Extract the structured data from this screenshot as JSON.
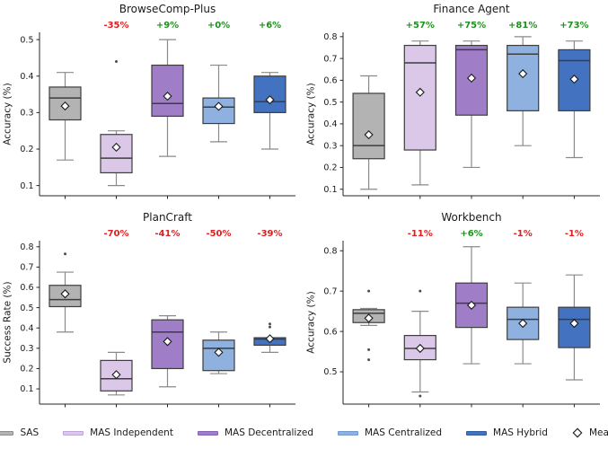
{
  "figure": {
    "type": "boxplot-grid",
    "rows": 2,
    "cols": 2
  },
  "colors": {
    "background": "#ffffff",
    "positive_change": "#1f8f1f",
    "negative_change": "#dd1f1f",
    "box_edge": "#3d3d3d",
    "median_line": "#3d3d3d",
    "whisker": "#8a8a8a",
    "outlier": "#4d4d4d",
    "mean_marker_fill": "#ffffff",
    "mean_marker_edge": "#1a1a1a",
    "axis": "#262626",
    "text": "#1a1a1a"
  },
  "legend": {
    "items": [
      {
        "label": "SAS",
        "fill": "#b3b3b3",
        "edge": "#8f8f8f"
      },
      {
        "label": "MAS Independent",
        "fill": "#dbc8e8",
        "edge": "#bda7d6"
      },
      {
        "label": "MAS Decentralized",
        "fill": "#a07dc7",
        "edge": "#8766b3"
      },
      {
        "label": "MAS Centralized",
        "fill": "#8fb1e0",
        "edge": "#7499cc"
      },
      {
        "label": "MAS Hybrid",
        "fill": "#4372c1",
        "edge": "#335e9f"
      }
    ],
    "mean_item": {
      "label": "Mean",
      "marker": "diamond"
    }
  },
  "chart_data": [
    {
      "type": "box",
      "title": "BrowseComp-Plus",
      "ylabel": "Accuracy (%)",
      "yticks": [
        0.1,
        0.2,
        0.3,
        0.4,
        0.5
      ],
      "ylim": [
        0.072,
        0.52
      ],
      "grid": false,
      "groups": [
        {
          "name": "SAS",
          "whisker_low": 0.17,
          "q1": 0.28,
          "median": 0.34,
          "q3": 0.37,
          "whisker_high": 0.41,
          "mean": 0.318,
          "outliers": [],
          "change": null
        },
        {
          "name": "MAS Independent",
          "whisker_low": 0.1,
          "q1": 0.135,
          "median": 0.175,
          "q3": 0.24,
          "whisker_high": 0.25,
          "mean": 0.205,
          "outliers": [
            0.44
          ],
          "change": "-35%"
        },
        {
          "name": "MAS Decentralized",
          "whisker_low": 0.18,
          "q1": 0.29,
          "median": 0.325,
          "q3": 0.43,
          "whisker_high": 0.5,
          "mean": 0.345,
          "outliers": [],
          "change": "+9%"
        },
        {
          "name": "MAS Centralized",
          "whisker_low": 0.22,
          "q1": 0.27,
          "median": 0.315,
          "q3": 0.34,
          "whisker_high": 0.43,
          "mean": 0.317,
          "outliers": [],
          "change": "+0%"
        },
        {
          "name": "MAS Hybrid",
          "whisker_low": 0.2,
          "q1": 0.3,
          "median": 0.33,
          "q3": 0.4,
          "whisker_high": 0.41,
          "mean": 0.335,
          "outliers": [],
          "change": "+6%"
        }
      ]
    },
    {
      "type": "box",
      "title": "Finance Agent",
      "ylabel": "Accuracy (%)",
      "yticks": [
        0.1,
        0.2,
        0.3,
        0.4,
        0.5,
        0.6,
        0.7,
        0.8
      ],
      "ylim": [
        0.07,
        0.82
      ],
      "grid": false,
      "groups": [
        {
          "name": "SAS",
          "whisker_low": 0.1,
          "q1": 0.24,
          "median": 0.3,
          "q3": 0.54,
          "whisker_high": 0.62,
          "mean": 0.35,
          "outliers": [],
          "change": null
        },
        {
          "name": "MAS Independent",
          "whisker_low": 0.12,
          "q1": 0.28,
          "median": 0.68,
          "q3": 0.76,
          "whisker_high": 0.78,
          "mean": 0.545,
          "outliers": [],
          "change": "+57%"
        },
        {
          "name": "MAS Decentralized",
          "whisker_low": 0.2,
          "q1": 0.44,
          "median": 0.74,
          "q3": 0.76,
          "whisker_high": 0.78,
          "mean": 0.61,
          "outliers": [],
          "change": "+75%"
        },
        {
          "name": "MAS Centralized",
          "whisker_low": 0.3,
          "q1": 0.46,
          "median": 0.72,
          "q3": 0.76,
          "whisker_high": 0.8,
          "mean": 0.63,
          "outliers": [],
          "change": "+81%"
        },
        {
          "name": "MAS Hybrid",
          "whisker_low": 0.245,
          "q1": 0.46,
          "median": 0.69,
          "q3": 0.74,
          "whisker_high": 0.78,
          "mean": 0.605,
          "outliers": [],
          "change": "+73%"
        }
      ]
    },
    {
      "type": "box",
      "title": "PlanCraft",
      "ylabel": "Success Rate (%)",
      "yticks": [
        0.1,
        0.2,
        0.3,
        0.4,
        0.5,
        0.6,
        0.7,
        0.8
      ],
      "ylim": [
        0.025,
        0.83
      ],
      "grid": false,
      "groups": [
        {
          "name": "SAS",
          "whisker_low": 0.38,
          "q1": 0.505,
          "median": 0.54,
          "q3": 0.61,
          "whisker_high": 0.675,
          "mean": 0.568,
          "outliers": [
            0.765
          ],
          "change": null
        },
        {
          "name": "MAS Independent",
          "whisker_low": 0.07,
          "q1": 0.09,
          "median": 0.15,
          "q3": 0.24,
          "whisker_high": 0.28,
          "mean": 0.17,
          "outliers": [],
          "change": "-70%"
        },
        {
          "name": "MAS Decentralized",
          "whisker_low": 0.11,
          "q1": 0.2,
          "median": 0.38,
          "q3": 0.44,
          "whisker_high": 0.46,
          "mean": 0.333,
          "outliers": [],
          "change": "-41%"
        },
        {
          "name": "MAS Centralized",
          "whisker_low": 0.175,
          "q1": 0.19,
          "median": 0.3,
          "q3": 0.34,
          "whisker_high": 0.38,
          "mean": 0.28,
          "outliers": [],
          "change": "-50%"
        },
        {
          "name": "MAS Hybrid",
          "whisker_low": 0.28,
          "q1": 0.315,
          "median": 0.345,
          "q3": 0.352,
          "whisker_high": 0.352,
          "mean": 0.347,
          "outliers": [
            0.405,
            0.42
          ],
          "change": "-39%"
        }
      ]
    },
    {
      "type": "box",
      "title": "Workbench",
      "ylabel": "Accuracy (%)",
      "yticks": [
        0.5,
        0.6,
        0.7,
        0.8
      ],
      "ylim": [
        0.42,
        0.825
      ],
      "grid": false,
      "groups": [
        {
          "name": "SAS",
          "whisker_low": 0.615,
          "q1": 0.622,
          "median": 0.645,
          "q3": 0.654,
          "whisker_high": 0.657,
          "mean": 0.633,
          "outliers": [
            0.7,
            0.555,
            0.53
          ],
          "change": null
        },
        {
          "name": "MAS Independent",
          "whisker_low": 0.45,
          "q1": 0.53,
          "median": 0.558,
          "q3": 0.59,
          "whisker_high": 0.65,
          "mean": 0.558,
          "outliers": [
            0.7,
            0.44
          ],
          "change": "-11%"
        },
        {
          "name": "MAS Decentralized",
          "whisker_low": 0.52,
          "q1": 0.61,
          "median": 0.67,
          "q3": 0.72,
          "whisker_high": 0.81,
          "mean": 0.665,
          "outliers": [],
          "change": "+6%"
        },
        {
          "name": "MAS Centralized",
          "whisker_low": 0.52,
          "q1": 0.58,
          "median": 0.63,
          "q3": 0.66,
          "whisker_high": 0.72,
          "mean": 0.62,
          "outliers": [],
          "change": "-1%"
        },
        {
          "name": "MAS Hybrid",
          "whisker_low": 0.48,
          "q1": 0.56,
          "median": 0.63,
          "q3": 0.66,
          "whisker_high": 0.74,
          "mean": 0.62,
          "outliers": [],
          "change": "-1%"
        }
      ]
    }
  ]
}
